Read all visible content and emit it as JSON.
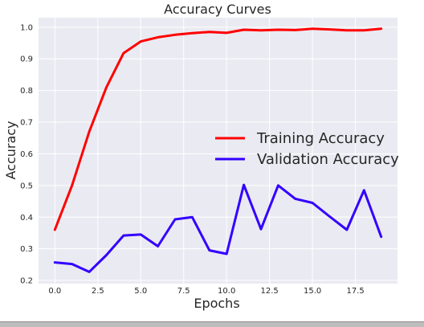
{
  "chart_data": {
    "type": "line",
    "title": "Accuracy Curves",
    "xlabel": "Epochs",
    "ylabel": "Accuracy",
    "xlim": [
      -0.95,
      19.95
    ],
    "ylim": [
      0.19,
      1.03
    ],
    "xticks": [
      "0.0",
      "2.5",
      "5.0",
      "7.5",
      "10.0",
      "12.5",
      "15.0",
      "17.5"
    ],
    "xtick_values": [
      0,
      2.5,
      5,
      7.5,
      10,
      12.5,
      15,
      17.5
    ],
    "yticks": [
      "0.2",
      "0.3",
      "0.4",
      "0.5",
      "0.6",
      "0.7",
      "0.8",
      "0.9",
      "1.0"
    ],
    "ytick_values": [
      0.2,
      0.3,
      0.4,
      0.5,
      0.6,
      0.7,
      0.8,
      0.9,
      1.0
    ],
    "grid": true,
    "background": "#eaeaf2",
    "legend_position": "center-right",
    "x": [
      0,
      1,
      2,
      3,
      4,
      5,
      6,
      7,
      8,
      9,
      10,
      11,
      12,
      13,
      14,
      15,
      16,
      17,
      18,
      19
    ],
    "series": [
      {
        "name": "Training Accuracy",
        "color": "#ff0000",
        "values": [
          0.36,
          0.5,
          0.67,
          0.81,
          0.918,
          0.955,
          0.968,
          0.976,
          0.981,
          0.985,
          0.982,
          0.992,
          0.99,
          0.992,
          0.991,
          0.995,
          0.993,
          0.99,
          0.99,
          0.995
        ]
      },
      {
        "name": "Validation Accuracy",
        "color": "#3300ff",
        "values": [
          0.257,
          0.252,
          0.227,
          0.28,
          0.342,
          0.345,
          0.308,
          0.393,
          0.4,
          0.295,
          0.284,
          0.502,
          0.362,
          0.5,
          0.458,
          0.445,
          0.402,
          0.36,
          0.485,
          0.338
        ]
      }
    ]
  }
}
